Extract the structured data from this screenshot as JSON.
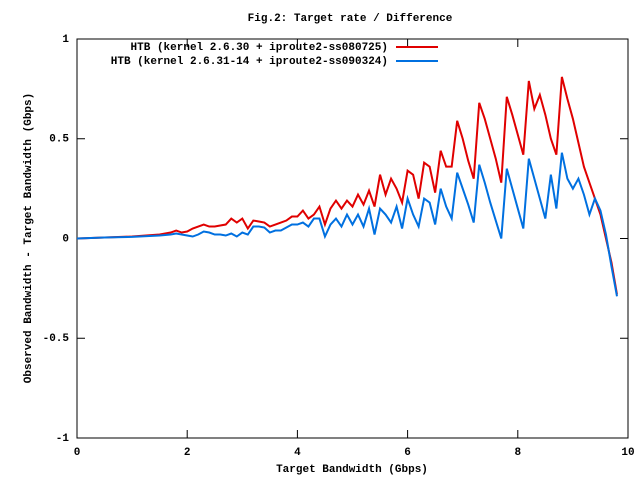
{
  "chart_data": {
    "type": "line",
    "title": "Fig.2: Target rate / Difference",
    "xlabel": "Target Bandwidth (Gbps)",
    "ylabel": "Observed Bandwidth - Target Bandwidth (Gbps)",
    "x": [
      0,
      0.5,
      1,
      1.5,
      1.7,
      1.8,
      1.9,
      2.0,
      2.1,
      2.2,
      2.3,
      2.4,
      2.5,
      2.6,
      2.7,
      2.8,
      2.9,
      3.0,
      3.1,
      3.2,
      3.3,
      3.4,
      3.5,
      3.6,
      3.7,
      3.8,
      3.9,
      4.0,
      4.1,
      4.2,
      4.3,
      4.4,
      4.5,
      4.6,
      4.7,
      4.8,
      4.9,
      5.0,
      5.1,
      5.2,
      5.3,
      5.4,
      5.5,
      5.6,
      5.7,
      5.8,
      5.9,
      6.0,
      6.1,
      6.2,
      6.3,
      6.4,
      6.5,
      6.6,
      6.7,
      6.8,
      6.9,
      7.0,
      7.1,
      7.2,
      7.3,
      7.4,
      7.5,
      7.6,
      7.7,
      7.8,
      7.9,
      8.0,
      8.1,
      8.2,
      8.3,
      8.4,
      8.5,
      8.6,
      8.7,
      8.8,
      8.9,
      9.0,
      9.1,
      9.2,
      9.3,
      9.4,
      9.5,
      9.6,
      9.7,
      9.8
    ],
    "series": [
      {
        "name": "HTB (kernel 2.6.30 + iproute2-ss080725)",
        "color": "#e00000",
        "values": [
          0,
          0.005,
          0.01,
          0.02,
          0.03,
          0.04,
          0.03,
          0.035,
          0.05,
          0.06,
          0.07,
          0.06,
          0.06,
          0.065,
          0.07,
          0.1,
          0.08,
          0.1,
          0.05,
          0.09,
          0.085,
          0.08,
          0.06,
          0.07,
          0.08,
          0.09,
          0.11,
          0.11,
          0.14,
          0.1,
          0.12,
          0.16,
          0.07,
          0.15,
          0.19,
          0.15,
          0.19,
          0.16,
          0.22,
          0.17,
          0.24,
          0.16,
          0.32,
          0.22,
          0.3,
          0.25,
          0.18,
          0.34,
          0.32,
          0.2,
          0.38,
          0.36,
          0.23,
          0.44,
          0.36,
          0.36,
          0.59,
          0.5,
          0.39,
          0.3,
          0.68,
          0.6,
          0.5,
          0.4,
          0.28,
          0.71,
          0.62,
          0.52,
          0.42,
          0.79,
          0.65,
          0.72,
          0.62,
          0.5,
          0.42,
          0.81,
          0.7,
          0.6,
          0.48,
          0.36,
          0.28,
          0.2,
          0.12,
          0,
          -0.12,
          -0.28
        ]
      },
      {
        "name": "HTB (kernel 2.6.31-14 + iproute2-ss090324)",
        "color": "#0070e0",
        "values": [
          0,
          0.005,
          0.008,
          0.015,
          0.02,
          0.025,
          0.02,
          0.015,
          0.01,
          0.02,
          0.035,
          0.03,
          0.02,
          0.02,
          0.015,
          0.025,
          0.01,
          0.03,
          0.02,
          0.06,
          0.06,
          0.055,
          0.03,
          0.04,
          0.04,
          0.055,
          0.07,
          0.07,
          0.08,
          0.06,
          0.1,
          0.1,
          0.01,
          0.07,
          0.1,
          0.06,
          0.12,
          0.07,
          0.12,
          0.06,
          0.15,
          0.02,
          0.15,
          0.12,
          0.08,
          0.16,
          0.05,
          0.2,
          0.12,
          0.06,
          0.2,
          0.18,
          0.07,
          0.25,
          0.16,
          0.1,
          0.33,
          0.25,
          0.17,
          0.08,
          0.37,
          0.28,
          0.18,
          0.09,
          0,
          0.35,
          0.25,
          0.15,
          0.05,
          0.4,
          0.3,
          0.2,
          0.1,
          0.32,
          0.15,
          0.43,
          0.3,
          0.25,
          0.3,
          0.22,
          0.12,
          0.2,
          0.14,
          0.02,
          -0.14,
          -0.29
        ]
      }
    ],
    "xlim": [
      0,
      10
    ],
    "xticks": [
      0,
      2,
      4,
      6,
      8,
      10
    ],
    "ylim": [
      -1,
      1
    ],
    "yticks": [
      -1,
      -0.5,
      0,
      0.5,
      1
    ],
    "legend": "top right"
  }
}
